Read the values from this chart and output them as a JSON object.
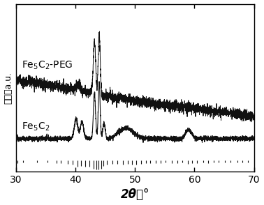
{
  "xmin": 30,
  "xmax": 70,
  "xlabel": "2θ／°",
  "ylabel": "強度／a.u.",
  "background_color": "#ffffff",
  "line_color": "#111111",
  "label_fe5c2_peg": "Fe$_5$C$_2$-PEG",
  "label_fe5c2": "Fe$_5$C$_2$",
  "tick_fontsize": 10,
  "axis_label_fontsize": 12,
  "annotation_fontsize": 10,
  "fe5c2_baseline": 0.3,
  "peg_baseline": 0.65,
  "noise_amplitude_peg": 0.018,
  "noise_amplitude_fe5c2": 0.008,
  "stick_positions": [
    30.3,
    31.2,
    33.6,
    35.3,
    36.8,
    37.5,
    38.7,
    39.5,
    40.3,
    40.9,
    41.6,
    42.3,
    43.1,
    43.5,
    43.9,
    44.3,
    44.7,
    45.3,
    46.2,
    47.1,
    48.0,
    48.8,
    49.5,
    50.2,
    51.0,
    51.8,
    52.6,
    53.5,
    54.3,
    55.1,
    56.2,
    57.1,
    58.0,
    58.9,
    59.6,
    60.4,
    61.5,
    62.3,
    63.2,
    64.0,
    65.1,
    66.0,
    67.2,
    68.1,
    69.0
  ],
  "stick_heights_rel": [
    0.3,
    0.2,
    0.2,
    0.2,
    0.3,
    0.3,
    0.4,
    0.5,
    0.7,
    0.6,
    0.7,
    0.7,
    0.9,
    1.0,
    1.0,
    0.9,
    0.6,
    0.5,
    0.4,
    0.4,
    0.5,
    0.4,
    0.5,
    0.5,
    0.4,
    0.35,
    0.3,
    0.35,
    0.3,
    0.25,
    0.3,
    0.3,
    0.25,
    0.4,
    0.35,
    0.3,
    0.25,
    0.3,
    0.25,
    0.25,
    0.25,
    0.2,
    0.25,
    0.2,
    0.2
  ],
  "xticks": [
    30,
    40,
    50,
    60,
    70
  ]
}
